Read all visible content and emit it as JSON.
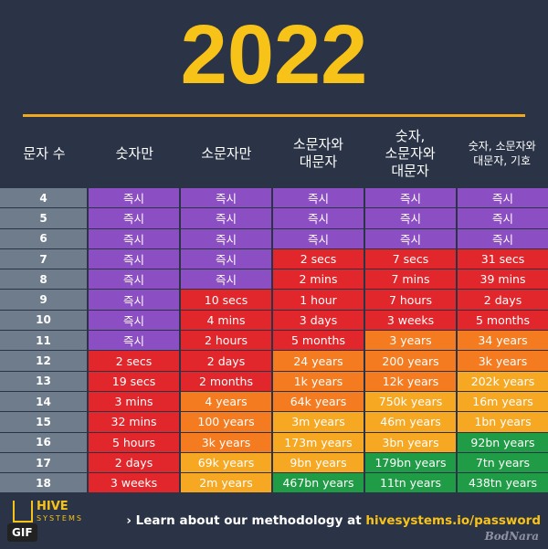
{
  "title": "2022",
  "header": [
    "문자 수",
    "숫자만",
    "소문자만",
    "소문자와\n대문자",
    "숫자,\n소문자와\n대문자",
    "숫자, 소문자와\n대문자, 기호"
  ],
  "palette": {
    "instant": "#8c4fc3",
    "red": "#e1262c",
    "orange": "#f47b1f",
    "yellow": "#f6a823",
    "green": "#1f9c45"
  },
  "rows": [
    {
      "label": "4",
      "cells": [
        "즉시",
        "즉시",
        "즉시",
        "즉시",
        "즉시"
      ],
      "colors": [
        "instant",
        "instant",
        "instant",
        "instant",
        "instant"
      ]
    },
    {
      "label": "5",
      "cells": [
        "즉시",
        "즉시",
        "즉시",
        "즉시",
        "즉시"
      ],
      "colors": [
        "instant",
        "instant",
        "instant",
        "instant",
        "instant"
      ]
    },
    {
      "label": "6",
      "cells": [
        "즉시",
        "즉시",
        "즉시",
        "즉시",
        "즉시"
      ],
      "colors": [
        "instant",
        "instant",
        "instant",
        "instant",
        "instant"
      ]
    },
    {
      "label": "7",
      "cells": [
        "즉시",
        "즉시",
        "2 secs",
        "7 secs",
        "31 secs"
      ],
      "colors": [
        "instant",
        "instant",
        "red",
        "red",
        "red"
      ]
    },
    {
      "label": "8",
      "cells": [
        "즉시",
        "즉시",
        "2 mins",
        "7 mins",
        "39 mins"
      ],
      "colors": [
        "instant",
        "instant",
        "red",
        "red",
        "red"
      ]
    },
    {
      "label": "9",
      "cells": [
        "즉시",
        "10 secs",
        "1 hour",
        "7 hours",
        "2 days"
      ],
      "colors": [
        "instant",
        "red",
        "red",
        "red",
        "red"
      ]
    },
    {
      "label": "10",
      "cells": [
        "즉시",
        "4 mins",
        "3 days",
        "3 weeks",
        "5 months"
      ],
      "colors": [
        "instant",
        "red",
        "red",
        "red",
        "red"
      ]
    },
    {
      "label": "11",
      "cells": [
        "즉시",
        "2 hours",
        "5 months",
        "3 years",
        "34 years"
      ],
      "colors": [
        "instant",
        "red",
        "red",
        "orange",
        "orange"
      ]
    },
    {
      "label": "12",
      "cells": [
        "2 secs",
        "2 days",
        "24 years",
        "200 years",
        "3k years"
      ],
      "colors": [
        "red",
        "red",
        "orange",
        "orange",
        "orange"
      ]
    },
    {
      "label": "13",
      "cells": [
        "19 secs",
        "2 months",
        "1k years",
        "12k years",
        "202k years"
      ],
      "colors": [
        "red",
        "red",
        "orange",
        "orange",
        "yellow"
      ]
    },
    {
      "label": "14",
      "cells": [
        "3 mins",
        "4 years",
        "64k years",
        "750k years",
        "16m years"
      ],
      "colors": [
        "red",
        "orange",
        "orange",
        "yellow",
        "yellow"
      ]
    },
    {
      "label": "15",
      "cells": [
        "32 mins",
        "100 years",
        "3m years",
        "46m years",
        "1bn years"
      ],
      "colors": [
        "red",
        "orange",
        "yellow",
        "yellow",
        "yellow"
      ]
    },
    {
      "label": "16",
      "cells": [
        "5 hours",
        "3k years",
        "173m years",
        "3bn years",
        "92bn years"
      ],
      "colors": [
        "red",
        "orange",
        "yellow",
        "yellow",
        "green"
      ]
    },
    {
      "label": "17",
      "cells": [
        "2 days",
        "69k years",
        "9bn years",
        "179bn years",
        "7tn years"
      ],
      "colors": [
        "red",
        "yellow",
        "yellow",
        "green",
        "green"
      ]
    },
    {
      "label": "18",
      "cells": [
        "3 weeks",
        "2m years",
        "467bn years",
        "11tn years",
        "438tn years"
      ],
      "colors": [
        "red",
        "yellow",
        "green",
        "green",
        "green"
      ]
    }
  ],
  "footer": {
    "logo_top": "HIVE",
    "logo_bottom": "SYSTEMS",
    "link_text": "› Learn about our methodology at ",
    "link_url": "hivesystems.io/password",
    "badge": "GIF",
    "watermark": "BodNara"
  }
}
